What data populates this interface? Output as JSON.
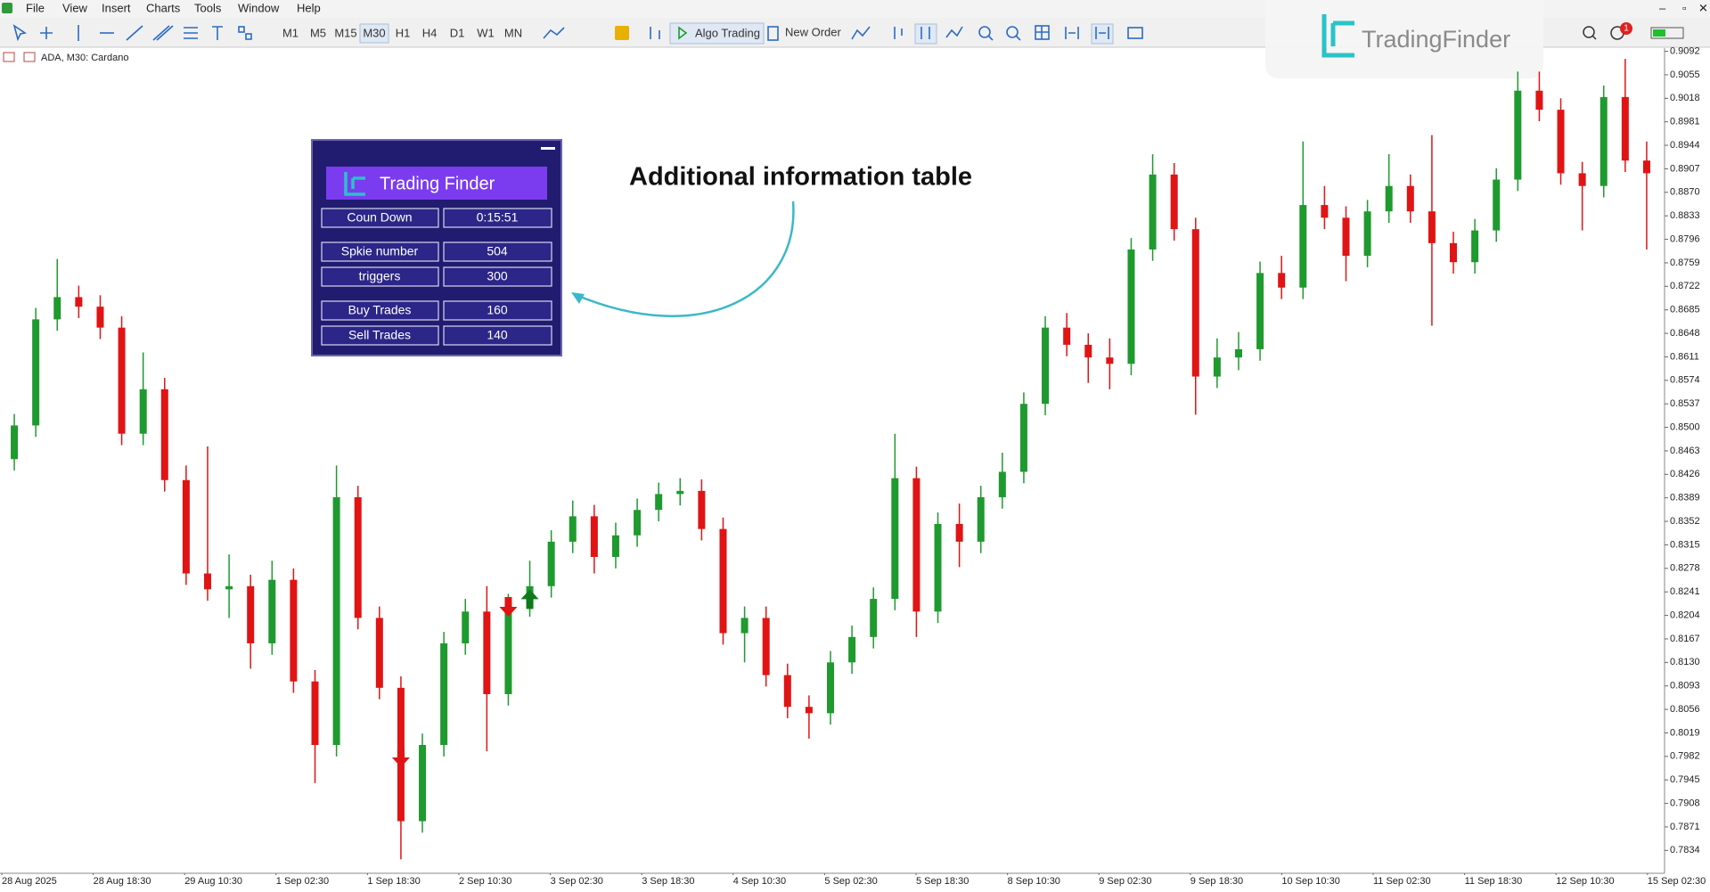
{
  "menu": [
    "File",
    "View",
    "Insert",
    "Charts",
    "Tools",
    "Window",
    "Help"
  ],
  "toolbar": {
    "timeframes": [
      "M1",
      "M5",
      "M15",
      "M30",
      "H1",
      "H4",
      "D1",
      "W1",
      "MN"
    ],
    "algo_trading": "Algo Trading",
    "new_order": "New Order",
    "notifications": 1
  },
  "watermark": "TradingFinder",
  "annotation": "Additional information table",
  "info_panel": {
    "logo": "Trading Finder",
    "rows": [
      [
        "Coun Down",
        "0:15:51"
      ],
      [
        "Spkie number",
        504
      ],
      [
        "triggers",
        300
      ],
      [
        "Buy Trades",
        160
      ],
      [
        "Sell Trades",
        140
      ]
    ]
  },
  "chart_data": {
    "type": "candlestick",
    "symbol_label": "ADA, M30: Cardano",
    "x_labels": [
      "28 Aug 2025",
      "28 Aug 18:30",
      "29 Aug 10:30",
      "1 Sep 02:30",
      "1 Sep 18:30",
      "2 Sep 10:30",
      "3 Sep 02:30",
      "3 Sep 18:30",
      "4 Sep 10:30",
      "5 Sep 02:30",
      "5 Sep 18:30",
      "8 Sep 10:30",
      "9 Sep 02:30",
      "9 Sep 18:30",
      "10 Sep 10:30",
      "11 Sep 02:30",
      "11 Sep 18:30",
      "12 Sep 10:30",
      "15 Sep 02:30"
    ],
    "open": [
      0.845,
      0.8503,
      0.867,
      0.8705,
      0.869,
      0.8657,
      0.849,
      0.856,
      0.8417,
      0.827,
      0.8245,
      0.825,
      0.816,
      0.826,
      0.81,
      0.8,
      0.839,
      0.82,
      0.809,
      0.788,
      0.8,
      0.816,
      0.821,
      0.808,
      0.822,
      0.825,
      0.832,
      0.836,
      0.8296,
      0.833,
      0.837,
      0.8395,
      0.84,
      0.834,
      0.8176,
      0.82,
      0.811,
      0.806,
      0.805,
      0.813,
      0.817,
      0.823,
      0.842,
      0.821,
      0.8348,
      0.832,
      0.839,
      0.843,
      0.8537,
      0.8657,
      0.863,
      0.861,
      0.86,
      0.878,
      0.8898,
      0.8812,
      0.858,
      0.861,
      0.8623,
      0.8743,
      0.872,
      0.885,
      0.883,
      0.877,
      0.884,
      0.888,
      0.884,
      0.879,
      0.876,
      0.881,
      0.889,
      0.903,
      0.9,
      0.89,
      0.888,
      0.902,
      0.892
    ],
    "high": [
      0.8521,
      0.8688,
      0.8765,
      0.8723,
      0.8708,
      0.8675,
      0.8618,
      0.8578,
      0.844,
      0.847,
      0.83,
      0.8268,
      0.829,
      0.8278,
      0.8118,
      0.844,
      0.8408,
      0.8218,
      0.8108,
      0.8018,
      0.8178,
      0.823,
      0.825,
      0.8238,
      0.829,
      0.8338,
      0.8385,
      0.8378,
      0.835,
      0.8388,
      0.8413,
      0.842,
      0.8418,
      0.8358,
      0.8218,
      0.8218,
      0.8128,
      0.8078,
      0.8148,
      0.8188,
      0.8248,
      0.849,
      0.8438,
      0.8366,
      0.838,
      0.8408,
      0.846,
      0.8555,
      0.8675,
      0.868,
      0.8648,
      0.864,
      0.8798,
      0.893,
      0.8916,
      0.883,
      0.864,
      0.865,
      0.8761,
      0.877,
      0.895,
      0.888,
      0.8848,
      0.8858,
      0.893,
      0.8898,
      0.896,
      0.8808,
      0.8828,
      0.8908,
      0.906,
      0.906,
      0.9018,
      0.8918,
      0.9038,
      0.908,
      0.895
    ],
    "low": [
      0.8432,
      0.8485,
      0.8652,
      0.8672,
      0.8639,
      0.8472,
      0.8472,
      0.8399,
      0.8252,
      0.8227,
      0.82,
      0.812,
      0.8142,
      0.8082,
      0.794,
      0.7982,
      0.8182,
      0.8072,
      0.782,
      0.7862,
      0.7982,
      0.8142,
      0.799,
      0.8062,
      0.8202,
      0.8232,
      0.8302,
      0.827,
      0.8278,
      0.8312,
      0.8352,
      0.8377,
      0.8322,
      0.8158,
      0.813,
      0.8092,
      0.8042,
      0.801,
      0.8032,
      0.8112,
      0.8152,
      0.8212,
      0.817,
      0.8192,
      0.828,
      0.8302,
      0.8372,
      0.8412,
      0.8519,
      0.8612,
      0.857,
      0.856,
      0.8582,
      0.8762,
      0.8794,
      0.852,
      0.8562,
      0.859,
      0.8605,
      0.8702,
      0.8702,
      0.8812,
      0.873,
      0.8752,
      0.8822,
      0.8822,
      0.866,
      0.8742,
      0.8742,
      0.8792,
      0.8872,
      0.8982,
      0.8882,
      0.881,
      0.8862,
      0.8902,
      0.878
    ],
    "close": [
      0.8503,
      0.867,
      0.8705,
      0.869,
      0.8657,
      0.849,
      0.856,
      0.8417,
      0.827,
      0.8245,
      0.825,
      0.816,
      0.826,
      0.81,
      0.8,
      0.839,
      0.82,
      0.809,
      0.788,
      0.8,
      0.816,
      0.821,
      0.808,
      0.822,
      0.825,
      0.832,
      0.836,
      0.8296,
      0.833,
      0.837,
      0.8395,
      0.84,
      0.834,
      0.8176,
      0.82,
      0.811,
      0.806,
      0.805,
      0.813,
      0.817,
      0.823,
      0.842,
      0.821,
      0.8348,
      0.832,
      0.839,
      0.843,
      0.8537,
      0.8657,
      0.863,
      0.861,
      0.86,
      0.878,
      0.8898,
      0.8812,
      0.858,
      0.861,
      0.8623,
      0.8743,
      0.872,
      0.885,
      0.883,
      0.877,
      0.884,
      0.888,
      0.884,
      0.879,
      0.876,
      0.881,
      0.889,
      0.903,
      0.9,
      0.89,
      0.888,
      0.902,
      0.892,
      0.89
    ],
    "up_color": "#1f9a2e",
    "down_color": "#e01414",
    "ylim": [
      0.7798,
      0.9097
    ],
    "yticks": [
      0.9092,
      0.9055,
      0.9018,
      0.8981,
      0.8944,
      0.8907,
      {
        "value": 0.887,
        "label": "0.8870"
      },
      0.8833,
      0.8796,
      0.8759,
      0.8722,
      0.8685,
      0.8648,
      0.8611,
      0.8574,
      0.8537,
      {
        "value": 0.85,
        "label": "0.8500"
      },
      0.8463,
      0.8426,
      0.8389,
      0.8352,
      0.8315,
      0.8278,
      0.8241,
      0.8204,
      0.8167,
      {
        "value": 0.813,
        "label": "0.8130"
      },
      0.8093,
      0.8056,
      0.8019,
      0.7982,
      0.7945,
      0.7908,
      0.7871,
      0.7834
    ],
    "grid": false,
    "signals": {
      "buy": {
        "color": "#0f7a1a",
        "candles": [
          24
        ],
        "prices": [
          0.8245
        ]
      },
      "sell": {
        "color": "#e01414",
        "candles": [
          23,
          18
        ],
        "prices": [
          0.8202,
          0.7965
        ]
      }
    }
  }
}
